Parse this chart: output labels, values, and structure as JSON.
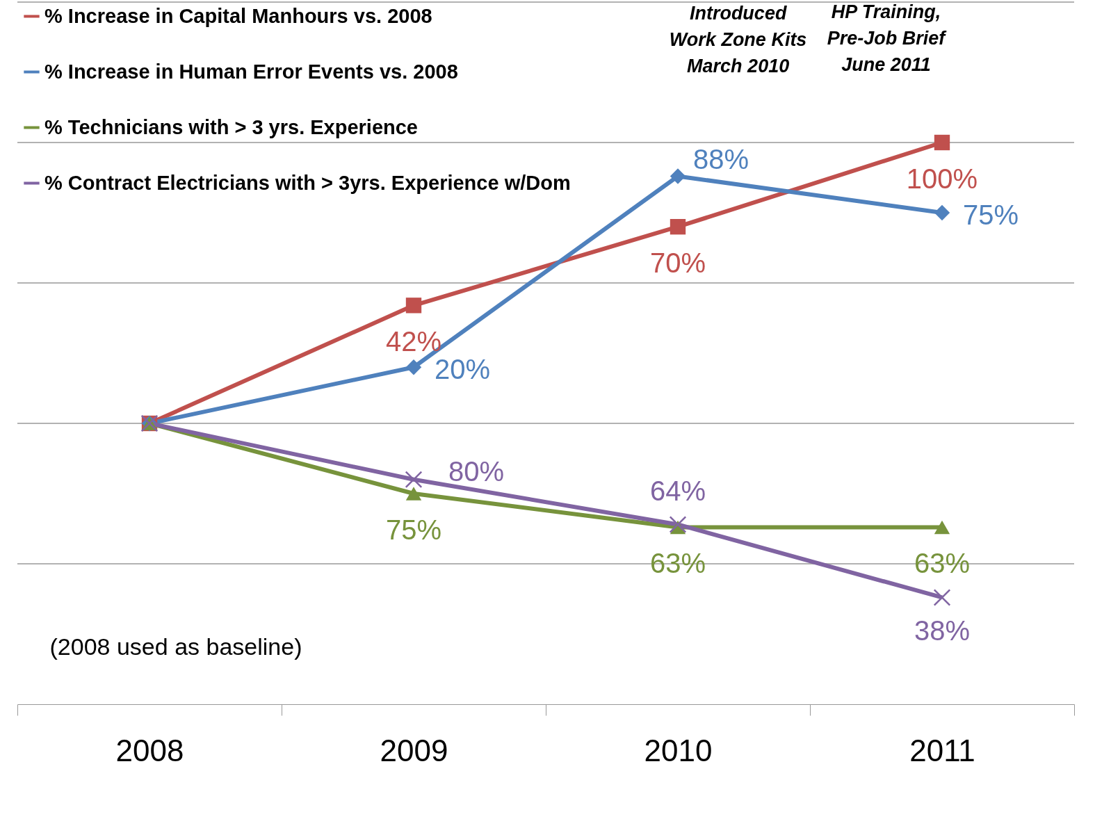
{
  "chart_data": {
    "type": "line",
    "categories": [
      "2008",
      "2009",
      "2010",
      "2011"
    ],
    "series": [
      {
        "name": "% Increase in Capital Manhours vs. 2008",
        "color": "#c0504d",
        "marker": "square",
        "values": [
          0,
          42,
          70,
          100
        ],
        "value_labels": [
          null,
          "42%",
          "70%",
          "100%"
        ]
      },
      {
        "name": "% Increase in Human Error Events vs. 2008",
        "color": "#4f81bd",
        "marker": "diamond",
        "values": [
          0,
          20,
          88,
          75
        ],
        "value_labels": [
          null,
          "20%",
          "88%",
          "75%"
        ]
      },
      {
        "name": "% Technicians with > 3 yrs. Experience",
        "color": "#77933c",
        "marker": "triangle",
        "axis": "y2",
        "values": [
          100,
          75,
          63,
          63
        ],
        "value_labels": [
          null,
          "75%",
          "63%",
          "63%"
        ]
      },
      {
        "name": "% Contract Electricians with > 3yrs. Experience w/Dom",
        "color": "#8064a2",
        "marker": "cross",
        "axis": "y2",
        "values": [
          100,
          80,
          64,
          38
        ],
        "value_labels": [
          null,
          "80%",
          "64%",
          "38%"
        ]
      }
    ],
    "ylim": [
      -100,
      150
    ],
    "yticks": [
      {
        "value": -50,
        "label": null
      },
      {
        "value": 0,
        "label": null
      },
      {
        "value": 50,
        "label": null
      },
      {
        "value": 100,
        "label": null
      },
      {
        "value": 150,
        "label": null
      }
    ],
    "y2lim": [
      0,
      250
    ],
    "tick_labels": "x",
    "annotations": [
      "Introduced\nWork Zone Kits\nMarch 2010",
      "HP Training,\nPre-Job Brief\nJune 2011",
      "(2008 used as baseline)"
    ],
    "grid": "y",
    "legend": "top left",
    "line_style": "solid"
  }
}
